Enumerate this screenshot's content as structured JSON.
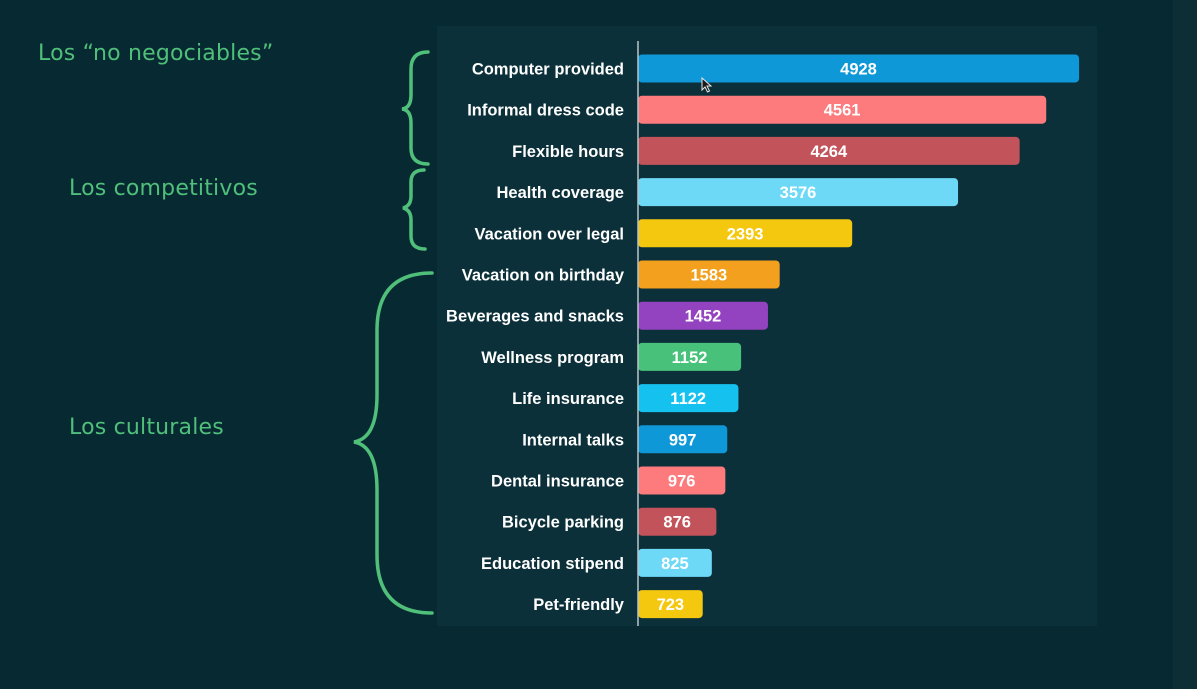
{
  "group_labels": {
    "non_negotiable": "Los “no negociables”",
    "competitive": "Los competitivos",
    "cultural": "Los culturales"
  },
  "bracket_color": "#4fbf7a",
  "chart_data": {
    "type": "bar",
    "orientation": "horizontal",
    "title": "",
    "xlabel": "",
    "ylabel": "",
    "categories": [
      "Computer provided",
      "Informal dress code",
      "Flexible hours",
      "Health coverage",
      "Vacation over legal",
      "Vacation on birthday",
      "Beverages and snacks",
      "Wellness program",
      "Life insurance",
      "Internal talks",
      "Dental insurance",
      "Bicycle parking",
      "Education stipend",
      "Pet-friendly"
    ],
    "values": [
      4928,
      4561,
      4264,
      3576,
      2393,
      1583,
      1452,
      1152,
      1122,
      997,
      976,
      876,
      825,
      723
    ],
    "colors": [
      "#0f98d8",
      "#fd7a7d",
      "#c2535a",
      "#6dd9f7",
      "#f5c810",
      "#f3a01e",
      "#9343c0",
      "#48c27a",
      "#15c2ef",
      "#0f98d8",
      "#fd7a7d",
      "#c2535a",
      "#6dd9f7",
      "#f5c810"
    ],
    "xlim": [
      0,
      5000
    ],
    "grid": false,
    "legend": "none",
    "data_labels": true
  }
}
